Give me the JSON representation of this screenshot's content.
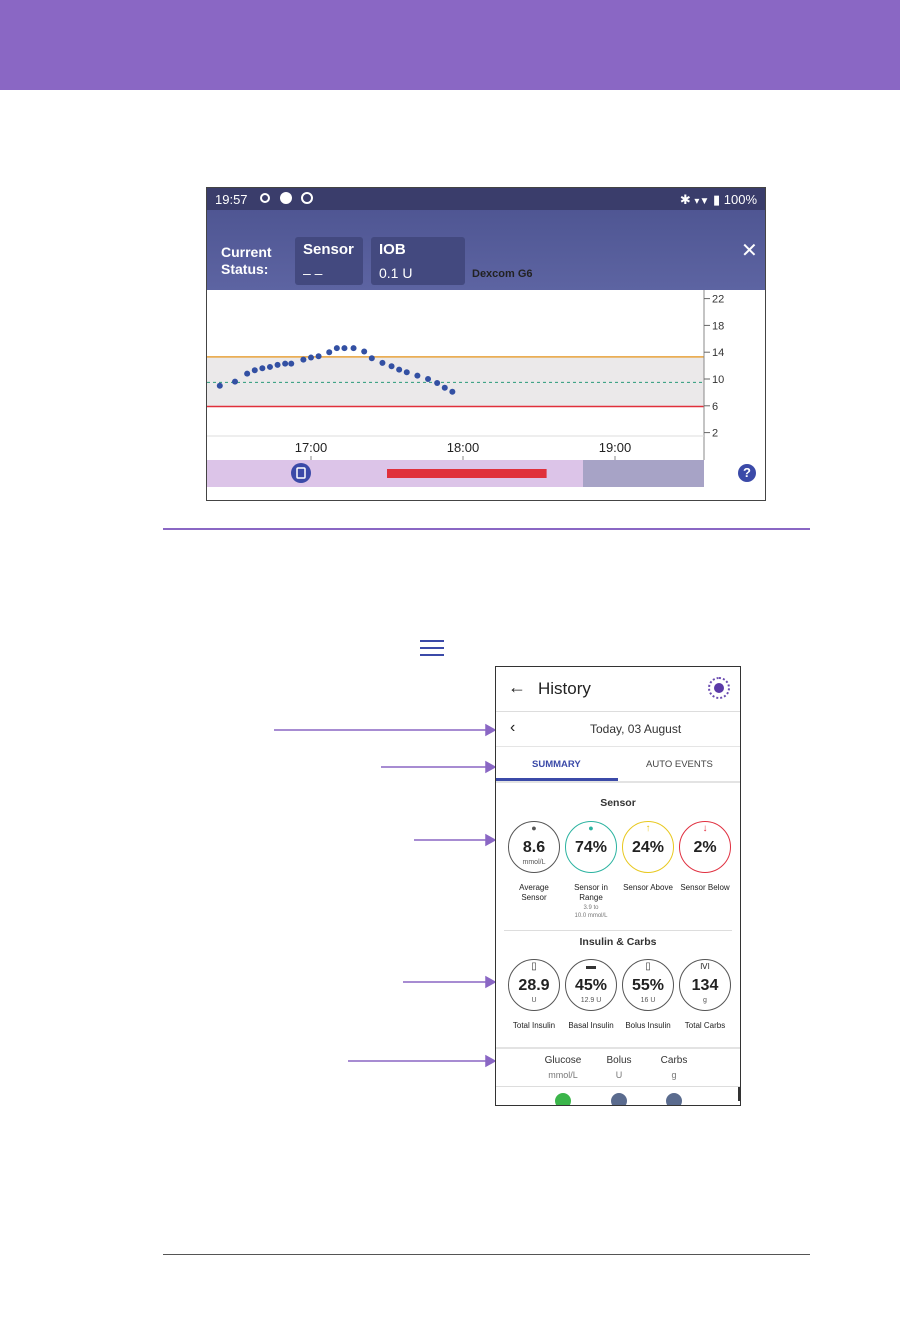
{
  "colors": {
    "band": "#8a67c4",
    "header": "#545b97",
    "target_line": "#e8a33b",
    "low_line": "#e0303b",
    "glucose_dots": "#3350a3",
    "accent": "#3b4aa8"
  },
  "pump_screen": {
    "status_bar": {
      "time": "19:57",
      "battery": "100%"
    },
    "header": {
      "status_label": "Current\nStatus:",
      "sensor_title": "Sensor",
      "sensor_value": "– –",
      "iob_title": "IOB",
      "iob_value": "0.1 U",
      "cgm_name": "Dexcom G6"
    },
    "close_icon": "close-icon",
    "chart_data": {
      "type": "scatter",
      "x_labels": [
        "17:00",
        "18:00",
        "19:00"
      ],
      "y_ticks": [
        22,
        18,
        14,
        10,
        6,
        2
      ],
      "ylim": [
        0,
        23.5
      ],
      "target_high": 13.3,
      "target_low": 5.9,
      "target_mid": 9.5,
      "x_hours": [
        16.4,
        16.5,
        16.58,
        16.63,
        16.68,
        16.73,
        16.78,
        16.83,
        16.87,
        16.95,
        17.0,
        17.05,
        17.12,
        17.17,
        17.22,
        17.28,
        17.35,
        17.4,
        17.47,
        17.53,
        17.58,
        17.63,
        17.7,
        17.77,
        17.83,
        17.88,
        17.93
      ],
      "glucose": [
        9.0,
        9.6,
        10.8,
        11.3,
        11.6,
        11.8,
        12.1,
        12.3,
        12.3,
        12.9,
        13.2,
        13.4,
        14.0,
        14.6,
        14.6,
        14.6,
        14.1,
        13.1,
        12.4,
        11.9,
        11.4,
        11.0,
        10.5,
        10.0,
        9.4,
        8.7,
        8.1
      ],
      "basal_bar": {
        "start_hour": 17.5,
        "end_hour": 18.55
      }
    },
    "help_label": "?"
  },
  "history_screen": {
    "title": "History",
    "date": "Today, 03 August",
    "tabs": [
      "SUMMARY",
      "AUTO EVENTS"
    ],
    "sensor_section": {
      "title": "Sensor",
      "items": [
        {
          "value": "8.6",
          "unit": "mmol/L",
          "caption": "Average\nSensor",
          "sub": "",
          "color": "#555555",
          "icon": "drop-icon"
        },
        {
          "value": "74%",
          "unit": "",
          "caption": "Sensor in\nRange",
          "sub": "3.9 to\n10.0 mmol/L",
          "color": "#2bb3a0",
          "icon": "drop-icon"
        },
        {
          "value": "24%",
          "unit": "",
          "caption": "Sensor Above",
          "sub": "",
          "color": "#e8c81f",
          "icon": "arrow-up-icon"
        },
        {
          "value": "2%",
          "unit": "",
          "caption": "Sensor Below",
          "sub": "",
          "color": "#e03040",
          "icon": "arrow-down-icon"
        }
      ]
    },
    "insulin_section": {
      "title": "Insulin & Carbs",
      "items": [
        {
          "value": "28.9",
          "unit": "U",
          "caption": "Total Insulin",
          "icon": "insulin-icon"
        },
        {
          "value": "45%",
          "unit": "12.9 U",
          "caption": "Basal Insulin",
          "icon": "basal-icon"
        },
        {
          "value": "55%",
          "unit": "16 U",
          "caption": "Bolus Insulin",
          "icon": "insulin-icon"
        },
        {
          "value": "134",
          "unit": "g",
          "caption": "Total Carbs",
          "icon": "fork-knife-icon"
        }
      ]
    },
    "legend": [
      {
        "label": "Glucose",
        "unit": "mmol/L"
      },
      {
        "label": "Bolus",
        "unit": "U"
      },
      {
        "label": "Carbs",
        "unit": "g"
      }
    ]
  }
}
